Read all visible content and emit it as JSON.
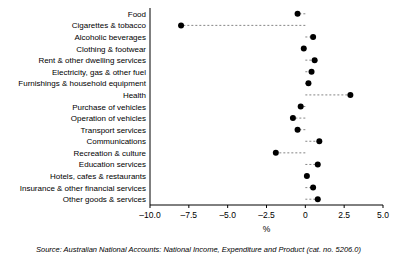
{
  "chart_data": {
    "type": "dot",
    "orientation": "horizontal",
    "categories": [
      "Food",
      "Cigarettes & tobacco",
      "Alcoholic beverages",
      "Clothing & footwear",
      "Rent & other dwelling services",
      "Electricity, gas & other fuel",
      "Furnishings & household equipment",
      "Health",
      "Purchase of vehicles",
      "Operation of vehicles",
      "Transport services",
      "Communications",
      "Recreation & culture",
      "Education services",
      "Hotels, cafes & restaurants",
      "Insurance & other financial services",
      "Other goods & services"
    ],
    "values": [
      -0.5,
      -8.0,
      0.5,
      -0.1,
      0.6,
      0.4,
      0.2,
      2.9,
      -0.3,
      -0.8,
      -0.5,
      0.9,
      -1.9,
      0.8,
      0.1,
      0.5,
      0.8
    ],
    "color": "#000000",
    "x_label": "%",
    "xlim": [
      -10,
      5
    ],
    "xticks": [
      {
        "value": -10,
        "label": "–10.0"
      },
      {
        "value": -7.5,
        "label": "–7.5"
      },
      {
        "value": -5,
        "label": "–5.0"
      },
      {
        "value": -2.5,
        "label": "–2.5"
      },
      0,
      {
        "value": 2.5,
        "label": "2.5"
      },
      {
        "value": 5,
        "label": "5.0"
      }
    ],
    "source": "Source: Australian National Accounts: National Income, Expenditure and Product (cat. no. 5206.0)"
  }
}
